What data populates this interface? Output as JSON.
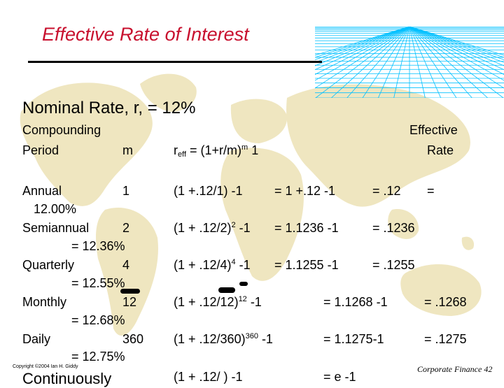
{
  "title": "Effective Rate of Interest",
  "nominal": "Nominal Rate, r, = 12%",
  "headers": {
    "compounding": "Compounding",
    "period": "Period",
    "m": "m",
    "formula_r": "r",
    "formula_sub": "eff",
    "formula_main": " = (1+r/m)",
    "formula_exp": "m",
    "formula_tail": "  1",
    "effective": "Effective",
    "rate": "Rate"
  },
  "rows": [
    {
      "period": "Annual",
      "m": "1",
      "eff_line2": "12.00%",
      "calc_a": "(1 +.12/1)",
      "calc_a_exp": "",
      "calc_a_tail": " -1",
      "calc_b": "= 1 +.12 -1",
      "calc_c": "= .12",
      "calc_d": "="
    },
    {
      "period": "Semiannual",
      "m": "2",
      "eff_line2": "= 12.36%",
      "calc_a": "(1 + .12/2)",
      "calc_a_exp": "2",
      "calc_a_tail": "  -1",
      "calc_b": "= 1.1236 -1",
      "calc_c": "= .1236",
      "calc_d": ""
    },
    {
      "period": "Quarterly",
      "m": "4",
      "eff_line2": "= 12.55%",
      "calc_a": "(1 + .12/4)",
      "calc_a_exp": "4",
      "calc_a_tail": "  -1",
      "calc_b": "= 1.1255 -1",
      "calc_c": "= .1255",
      "calc_d": ""
    },
    {
      "period": "Monthly",
      "m": "12",
      "eff_line2": "= 12.68%",
      "calc_a": "(1 + .12/12)",
      "calc_a_exp": "12",
      "calc_a_tail": "  -1",
      "calc_b": "= 1.1268 -1",
      "calc_c": "= .1268",
      "calc_d": ""
    },
    {
      "period": "Daily",
      "m": "360",
      "eff_line2": "= 12.75%",
      "calc_a": "(1 + .12/360)",
      "calc_a_exp": "360",
      "calc_a_tail": "  -1",
      "calc_b": "= 1.1275-1",
      "calc_c": "= .1275",
      "calc_d": ""
    }
  ],
  "cutoff": {
    "period": "Continuously",
    "calc_a": "(1 + .12/  )",
    "calc_a_tail": "  -1",
    "calc_b": "= e  -1"
  },
  "footer": {
    "copyright": "Copyright ©2004 Ian H. Giddy",
    "page": "Corporate Finance 42"
  },
  "colors": {
    "title": "#c8102e",
    "map": "#efe6c0",
    "grid": "#00c0ff"
  }
}
